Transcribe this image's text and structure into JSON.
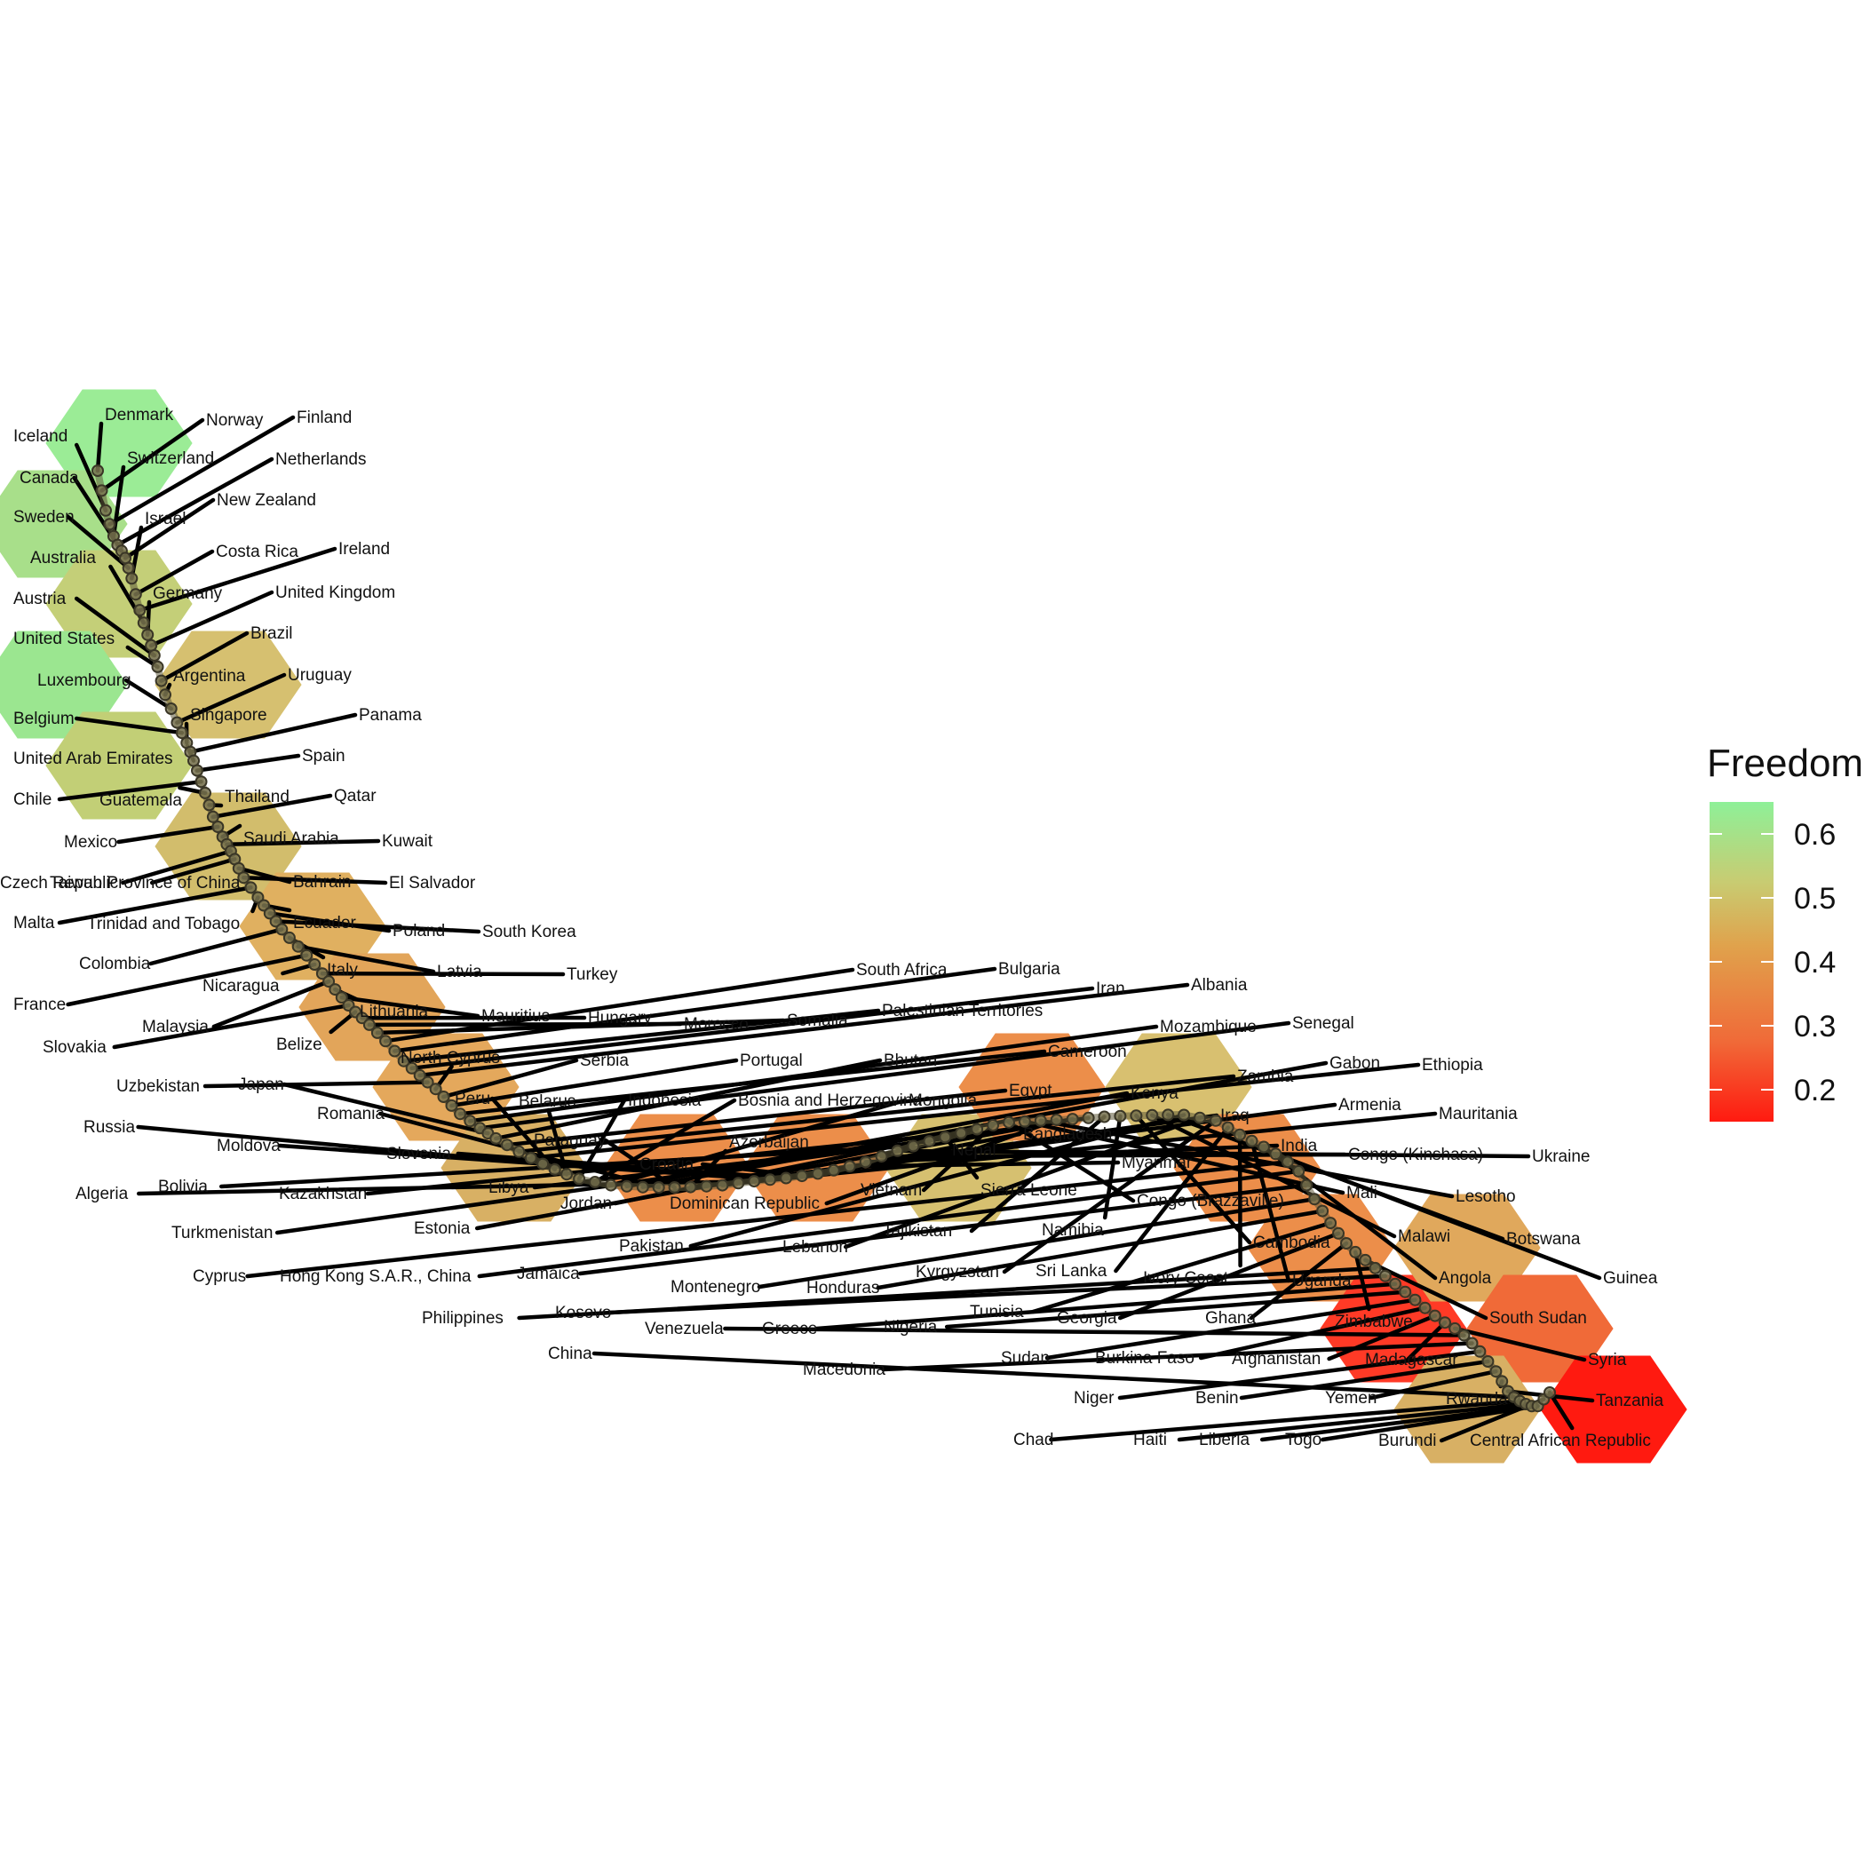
{
  "chart_data": {
    "type": "hexbin-path",
    "title": "",
    "xlabel": "",
    "ylabel": "",
    "grid": false,
    "legend": {
      "title": "Freedom",
      "placement": "right",
      "ticks": [
        "0.2",
        "0.3",
        "0.4",
        "0.5",
        "0.6"
      ],
      "tick_values": [
        0.2,
        0.3,
        0.4,
        0.5,
        0.6
      ],
      "range": [
        0.15,
        0.65
      ],
      "color_low": "#ff1a10",
      "color_mid": "#e0a24c",
      "color_high": "#8ef098"
    },
    "countries": [
      "Denmark",
      "Norway",
      "Iceland",
      "Finland",
      "Switzerland",
      "Netherlands",
      "Canada",
      "New Zealand",
      "Sweden",
      "Israel",
      "Costa Rica",
      "Ireland",
      "Australia",
      "Germany",
      "United Kingdom",
      "Austria",
      "United States",
      "Brazil",
      "Argentina",
      "Luxembourg",
      "Uruguay",
      "Belgium",
      "Singapore",
      "Panama",
      "United Arab Emirates",
      "Spain",
      "Chile",
      "Guatemala",
      "Thailand",
      "Qatar",
      "Mexico",
      "Saudi Arabia",
      "Kuwait",
      "Czech Republic",
      "Taiwan Province of China",
      "Bahrain",
      "El Salvador",
      "Malta",
      "Trinidad and Tobago",
      "Ecuador",
      "Poland",
      "South Korea",
      "Colombia",
      "Italy",
      "Latvia",
      "France",
      "Nicaragua",
      "Turkey",
      "Malaysia",
      "Lithuania",
      "Mauritius",
      "Slovakia",
      "Belize",
      "Hungary",
      "Morocco",
      "Somalia",
      "South Africa",
      "Bulgaria",
      "Palestinian Territories",
      "Iran",
      "Albania",
      "Uzbekistan",
      "North Cyprus",
      "Serbia",
      "Portugal",
      "Cameroon",
      "Mozambique",
      "Senegal",
      "Japan",
      "Bhutan",
      "Egypt",
      "Zambia",
      "Ethiopia",
      "Russia",
      "Peru",
      "Belarus",
      "Indonesia",
      "Bosnia and Herzegovina",
      "Mongolia",
      "Kenya",
      "Gabon",
      "Romania",
      "Paraguay",
      "Azerbaijan",
      "Iraq",
      "Armenia",
      "Mauritania",
      "Algeria",
      "Moldova",
      "Slovenia",
      "Croatia",
      "Nepal",
      "Bangladesh",
      "Myanmar",
      "India",
      "Congo (Kinshasa)",
      "Ukraine",
      "Bolivia",
      "Libya",
      "Sierra Leone",
      "Kazakhstan",
      "Jordan",
      "Vietnam",
      "Congo (Brazzaville)",
      "Mali",
      "Lesotho",
      "Dominican Republic",
      "Estonia",
      "Turkmenistan",
      "Tajikistan",
      "Namibia",
      "Cambodia",
      "Malawi",
      "Botswana",
      "Pakistan",
      "Lebanon",
      "Kyrgyzstan",
      "Sri Lanka",
      "Ivory Coast",
      "Uganda",
      "Angola",
      "Guinea",
      "Cyprus",
      "Hong Kong S.A.R., China",
      "Jamaica",
      "Montenegro",
      "Honduras",
      "Tunisia",
      "Georgia",
      "Ghana",
      "Zimbabwe",
      "South Sudan",
      "Philippines",
      "Kosovo",
      "Greece",
      "Nigeria",
      "Sudan",
      "Burkina Faso",
      "Afghanistan",
      "Madagascar",
      "Syria",
      "Venezuela",
      "Macedonia",
      "Niger",
      "Benin",
      "Yemen",
      "Rwanda",
      "Tanzania",
      "China",
      "Chad",
      "Haiti",
      "Liberia",
      "Togo",
      "Burundi",
      "Central African Republic"
    ]
  }
}
